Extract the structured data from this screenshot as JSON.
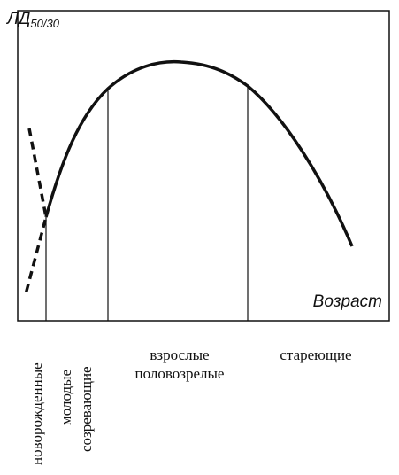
{
  "y_label": {
    "main": "ЛД",
    "sub": "50/30"
  },
  "x_label": "Возраст",
  "stages": [
    {
      "lines": [
        "новорожденные"
      ]
    },
    {
      "lines": [
        "молодые",
        "созревающие"
      ]
    },
    {
      "lines": [
        "взрослые",
        "половозрелые"
      ]
    },
    {
      "lines": [
        "стареющие"
      ]
    }
  ]
}
